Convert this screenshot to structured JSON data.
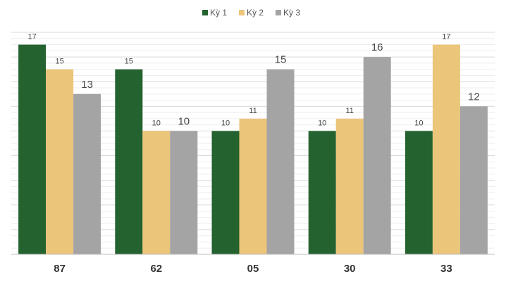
{
  "chart_data": {
    "type": "bar",
    "categories": [
      "87",
      "62",
      "05",
      "30",
      "33"
    ],
    "series": [
      {
        "name": "Kỳ 1",
        "color": "#24622f",
        "values": [
          17,
          15,
          10,
          10,
          10
        ]
      },
      {
        "name": "Kỳ 2",
        "color": "#ebc57a",
        "values": [
          15,
          10,
          11,
          11,
          17
        ]
      },
      {
        "name": "Kỳ 3",
        "color": "#a4a4a4",
        "values": [
          13,
          10,
          15,
          16,
          12
        ]
      }
    ],
    "ylim": [
      0,
      18
    ],
    "grid": true,
    "legend": "top-center",
    "data_labels": true
  }
}
